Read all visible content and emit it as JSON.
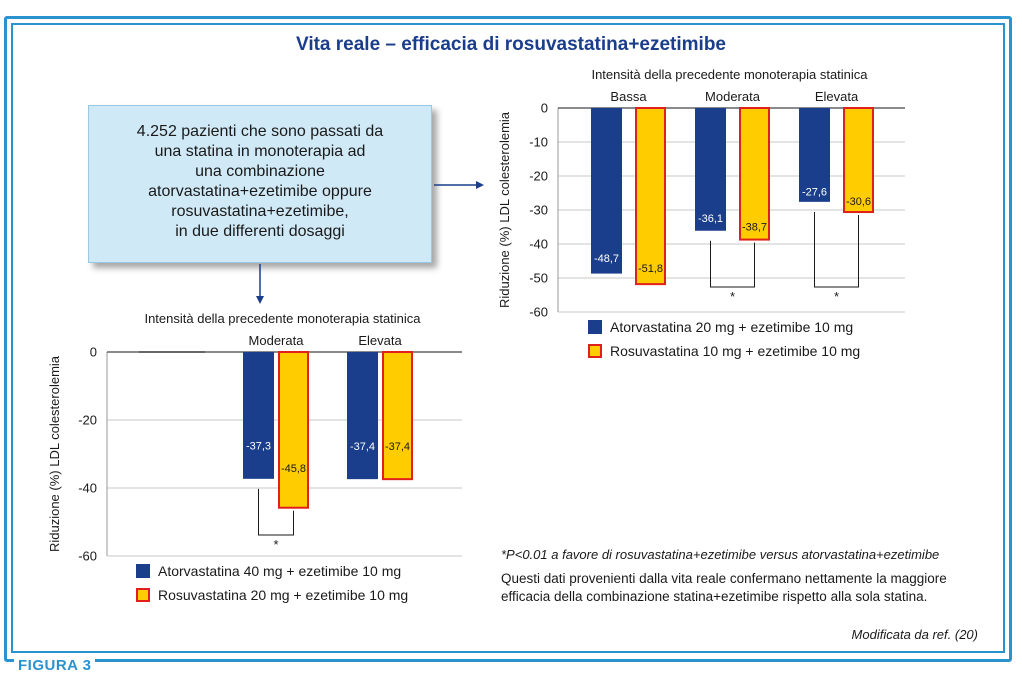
{
  "title": "Vita reale – efficacia di rosuvastatina+ezetimibe",
  "info_box": {
    "lines": [
      "4.252 pazienti che sono passati da",
      "una statina in monoterapia ad",
      "una combinazione",
      "atorvastatina+ezetimibe oppure",
      "rosuvastatina+ezetimibe,",
      "in due differenti dosaggi"
    ]
  },
  "colors": {
    "series_a": "#1a3d8c",
    "series_b": "#ffcc00",
    "series_b_border": "#e0201b",
    "accent": "#2a93cf"
  },
  "chart_data": [
    {
      "type": "bar",
      "supertitle": "Intensità della precedente monoterapia statinica",
      "categories": [
        "Bassa",
        "Moderata",
        "Elevata"
      ],
      "ylabel": "Riduzione (%) LDL colesterolemia",
      "ylim": [
        -60,
        0
      ],
      "yticks": [
        "0",
        "-10",
        "-20",
        "-30",
        "-40",
        "-50",
        "-60"
      ],
      "grid": true,
      "series": [
        {
          "name": "Atorvastatina 20 mg + ezetimibe 10 mg",
          "values": [
            -48.7,
            -36.1,
            -27.6
          ],
          "labels": [
            "-48,7",
            "-36,1",
            "-27,6"
          ]
        },
        {
          "name": "Rosuvastatina 10 mg + ezetimibe 10 mg",
          "values": [
            -51.8,
            -38.7,
            -30.6
          ],
          "labels": [
            "-51,8",
            "-38,7",
            "-30,6"
          ]
        }
      ],
      "significance": [
        {
          "category": "Moderata",
          "mark": "*"
        },
        {
          "category": "Elevata",
          "mark": "*"
        }
      ]
    },
    {
      "type": "bar",
      "supertitle": "Intensità della precedente monoterapia statinica",
      "categories": [
        "",
        "Moderata",
        "Elevata"
      ],
      "ylabel": "Riduzione (%) LDL colesterolemia",
      "ylim": [
        -60,
        0
      ],
      "yticks": [
        "0",
        "-20",
        "-40",
        "-60"
      ],
      "grid": true,
      "series": [
        {
          "name": "Atorvastatina 40 mg + ezetimibe 10 mg",
          "values": [
            null,
            -37.3,
            -37.4
          ],
          "labels": [
            "",
            "-37,3",
            "-37,4"
          ]
        },
        {
          "name": "Rosuvastatina 20 mg + ezetimibe 10 mg",
          "values": [
            null,
            -45.8,
            -37.4
          ],
          "labels": [
            "",
            "-45,8",
            "-37,4"
          ]
        }
      ],
      "significance": [
        {
          "category": "Moderata",
          "mark": "*"
        }
      ]
    }
  ],
  "footnote": "*P<0.01 a favore di rosuvastatina+ezetimibe versus atorvastatina+ezetimibe",
  "summary": "Questi dati provenienti dalla vita reale confermano nettamente la maggiore efficacia della combinazione statina+ezetimibe rispetto alla sola statina.",
  "source": "Modificata da ref. (20)",
  "figure_label": "FIGURA 3"
}
